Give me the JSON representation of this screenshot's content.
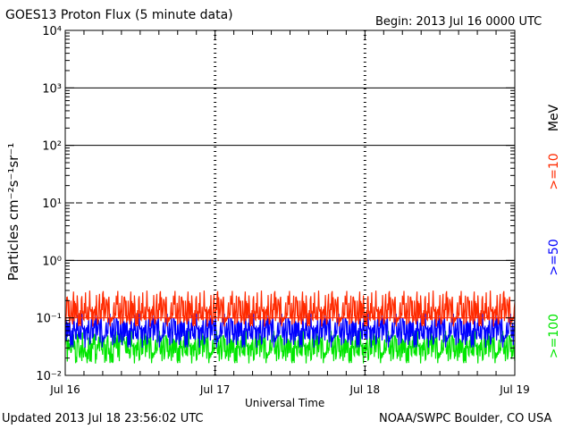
{
  "header": {
    "title": "GOES13 Proton Flux (5 minute data)",
    "begin": "Begin: 2013 Jul 16 0000 UTC"
  },
  "footer": {
    "updated": "Updated 2013 Jul 18 23:56:02 UTC",
    "credit": "NOAA/SWPC Boulder, CO USA"
  },
  "colors": {
    "ge10": "#ff2a00",
    "ge50": "#0000ff",
    "ge100": "#00e600",
    "axis": "#000000"
  },
  "chart_data": {
    "type": "line",
    "ylabel": "Particles cm⁻²s⁻¹sr⁻¹",
    "xlabel": "Universal Time",
    "yscale": "log",
    "ylim": [
      0.01,
      10000
    ],
    "xlim_days": [
      0,
      3
    ],
    "y_ticks": [
      {
        "value": 0.01,
        "label": "10⁻²"
      },
      {
        "value": 0.1,
        "label": "10⁻¹"
      },
      {
        "value": 1,
        "label": "10⁰"
      },
      {
        "value": 10,
        "label": "10¹"
      },
      {
        "value": 100,
        "label": "10²"
      },
      {
        "value": 1000,
        "label": "10³"
      },
      {
        "value": 10000,
        "label": "10⁴"
      }
    ],
    "x_ticks": [
      {
        "day": 0,
        "label": "Jul 16"
      },
      {
        "day": 1,
        "label": "Jul 17"
      },
      {
        "day": 2,
        "label": "Jul 18"
      },
      {
        "day": 3,
        "label": "Jul 19"
      }
    ],
    "threshold_lines": [
      {
        "value": 1,
        "style": "solid"
      },
      {
        "value": 10,
        "style": "dashed"
      },
      {
        "value": 100,
        "style": "solid"
      },
      {
        "value": 1000,
        "style": "solid"
      }
    ],
    "series": [
      {
        "name": ">=10",
        "color": "#ff2a00",
        "typical_range": [
          0.07,
          0.3
        ],
        "median": 0.12
      },
      {
        "name": ">=50",
        "color": "#0000ff",
        "typical_range": [
          0.03,
          0.12
        ],
        "median": 0.06
      },
      {
        "name": ">=100",
        "color": "#00e600",
        "typical_range": [
          0.016,
          0.06
        ],
        "median": 0.03
      }
    ],
    "legend": {
      "unit": "MeV",
      "entries": [
        ">=10",
        ">=50",
        ">=100"
      ],
      "placement": "right"
    },
    "grid": false
  }
}
